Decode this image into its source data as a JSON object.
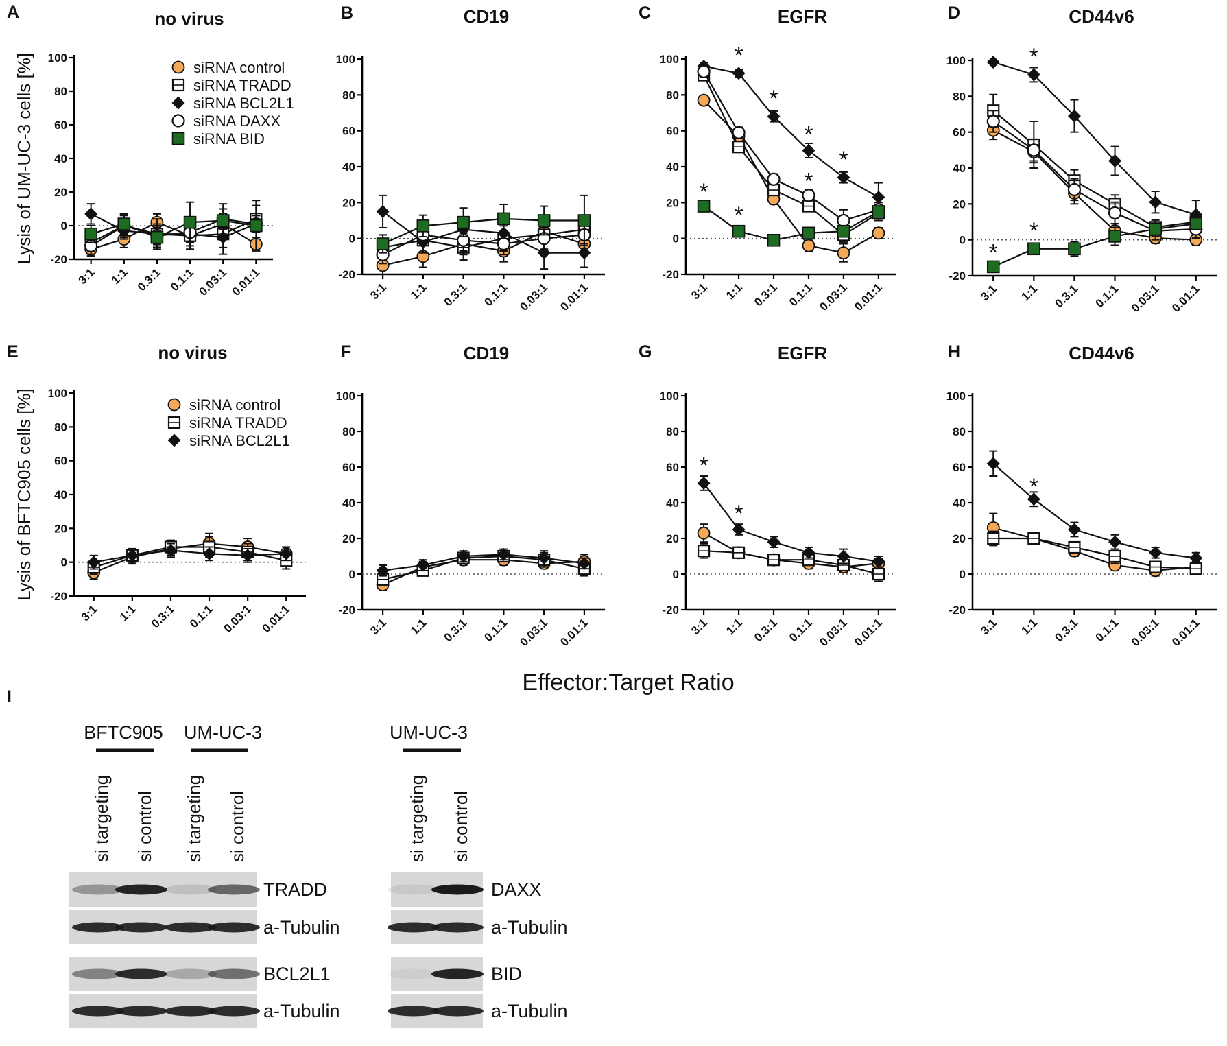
{
  "figure": {
    "common_xlabel": "Effector:Target Ratio"
  },
  "chart_data": [
    {
      "panel": "A",
      "type": "line",
      "title": "no virus",
      "ylabel": "Lysis of UM-UC-3 cells [%]",
      "categories": [
        "3:1",
        "1:1",
        "0.3:1",
        "0.1:1",
        "0.03:1",
        "0.01:1"
      ],
      "ylim": [
        -20,
        100
      ],
      "yticks": [
        -20,
        0,
        20,
        40,
        60,
        80,
        100
      ],
      "legend": [
        "siRNA control",
        "siRNA TRADD",
        "siRNA BCL2L1",
        "siRNA DAXX",
        "siRNA BID"
      ],
      "series": [
        {
          "name": "siRNA control",
          "marker": "circle-orange",
          "values": [
            -14,
            -8,
            2,
            -6,
            1,
            -11
          ],
          "err": [
            4,
            5,
            5,
            6,
            6,
            4
          ]
        },
        {
          "name": "siRNA TRADD",
          "marker": "square-open",
          "values": [
            -10,
            0,
            -5,
            -6,
            -5,
            4
          ],
          "err": [
            5,
            7,
            9,
            8,
            12,
            8
          ]
        },
        {
          "name": "siRNA BCL2L1",
          "marker": "diamond-black",
          "values": [
            7,
            -3,
            -5,
            -5,
            -7,
            1
          ],
          "err": [
            6,
            5,
            6,
            5,
            6,
            5
          ]
        },
        {
          "name": "siRNA DAXX",
          "marker": "circle-open",
          "values": [
            -12,
            0,
            -6,
            -4,
            4,
            1
          ],
          "err": [
            5,
            6,
            6,
            6,
            6,
            5
          ]
        },
        {
          "name": "siRNA BID",
          "marker": "square-green",
          "values": [
            -5,
            1,
            -7,
            2,
            3,
            0
          ],
          "err": [
            5,
            6,
            6,
            12,
            10,
            15
          ]
        }
      ],
      "stars": []
    },
    {
      "panel": "B",
      "type": "line",
      "title": "CD19",
      "categories": [
        "3:1",
        "1:1",
        "0.3:1",
        "0.1:1",
        "0.03:1",
        "0.01:1"
      ],
      "ylim": [
        -20,
        100
      ],
      "yticks": [
        -20,
        0,
        20,
        40,
        60,
        80,
        100
      ],
      "series": [
        {
          "name": "siRNA control",
          "marker": "circle-orange",
          "values": [
            -15,
            -10,
            -3,
            -7,
            4,
            -3
          ],
          "err": [
            5,
            6,
            6,
            6,
            6,
            5
          ]
        },
        {
          "name": "siRNA TRADD",
          "marker": "square-open",
          "values": [
            -5,
            -1,
            -5,
            0,
            2,
            5
          ],
          "err": [
            7,
            7,
            7,
            7,
            8,
            8
          ]
        },
        {
          "name": "siRNA BCL2L1",
          "marker": "diamond-black",
          "values": [
            15,
            -2,
            5,
            3,
            -8,
            -8
          ],
          "err": [
            9,
            6,
            6,
            6,
            9,
            8
          ]
        },
        {
          "name": "siRNA DAXX",
          "marker": "circle-open",
          "values": [
            -9,
            2,
            -1,
            -3,
            0,
            2
          ],
          "err": [
            5,
            5,
            6,
            6,
            6,
            5
          ]
        },
        {
          "name": "siRNA BID",
          "marker": "square-green",
          "values": [
            -3,
            7,
            9,
            11,
            10,
            10
          ],
          "err": [
            5,
            6,
            8,
            8,
            8,
            14
          ]
        }
      ],
      "stars": []
    },
    {
      "panel": "C",
      "type": "line",
      "title": "EGFR",
      "categories": [
        "3:1",
        "1:1",
        "0.3:1",
        "0.1:1",
        "0.03:1",
        "0.01:1"
      ],
      "ylim": [
        -20,
        100
      ],
      "yticks": [
        -20,
        0,
        20,
        40,
        60,
        80,
        100
      ],
      "series": [
        {
          "name": "siRNA control",
          "marker": "circle-orange",
          "values": [
            77,
            57,
            22,
            -4,
            -8,
            3
          ],
          "err": [
            2,
            3,
            3,
            3,
            5,
            3
          ]
        },
        {
          "name": "siRNA TRADD",
          "marker": "square-open",
          "values": [
            91,
            51,
            27,
            18,
            2,
            14
          ],
          "err": [
            3,
            3,
            3,
            3,
            4,
            4
          ]
        },
        {
          "name": "siRNA BCL2L1",
          "marker": "diamond-black",
          "values": [
            96,
            92,
            68,
            49,
            34,
            23
          ],
          "err": [
            2,
            2,
            3,
            4,
            3,
            8
          ]
        },
        {
          "name": "siRNA DAXX",
          "marker": "circle-open",
          "values": [
            93,
            59,
            33,
            24,
            10,
            16
          ],
          "err": [
            3,
            3,
            3,
            3,
            6,
            4
          ]
        },
        {
          "name": "siRNA BID",
          "marker": "square-green",
          "values": [
            18,
            4,
            -1,
            3,
            4,
            15
          ],
          "err": [
            2,
            2,
            2,
            2,
            2,
            3
          ]
        }
      ],
      "stars": [
        {
          "x": "1:1",
          "y": 103
        },
        {
          "x": "0.3:1",
          "y": 79
        },
        {
          "x": "0.1:1",
          "y": 59
        },
        {
          "x": "0.1:1",
          "y": 33
        },
        {
          "x": "0.03:1",
          "y": 45
        },
        {
          "x": "3:1",
          "y": 27
        },
        {
          "x": "1:1",
          "y": 14
        }
      ]
    },
    {
      "panel": "D",
      "type": "line",
      "title": "CD44v6",
      "categories": [
        "3:1",
        "1:1",
        "0.3:1",
        "0.1:1",
        "0.03:1",
        "0.01:1"
      ],
      "ylim": [
        -20,
        100
      ],
      "yticks": [
        -20,
        0,
        20,
        40,
        60,
        80,
        100
      ],
      "series": [
        {
          "name": "siRNA control",
          "marker": "circle-orange",
          "values": [
            61,
            49,
            26,
            5,
            1,
            0
          ],
          "err": [
            5,
            6,
            6,
            4,
            3,
            3
          ]
        },
        {
          "name": "siRNA TRADD",
          "marker": "square-open",
          "values": [
            72,
            53,
            33,
            20,
            7,
            10
          ],
          "err": [
            9,
            13,
            6,
            5,
            4,
            4
          ]
        },
        {
          "name": "siRNA BCL2L1",
          "marker": "diamond-black",
          "values": [
            99,
            92,
            69,
            44,
            21,
            14
          ],
          "err": [
            1,
            4,
            9,
            8,
            6,
            8
          ]
        },
        {
          "name": "siRNA DAXX",
          "marker": "circle-open",
          "values": [
            66,
            50,
            28,
            15,
            5,
            6
          ],
          "err": [
            6,
            6,
            6,
            6,
            5,
            5
          ]
        },
        {
          "name": "siRNA BID",
          "marker": "square-green",
          "values": [
            -15,
            -5,
            -5,
            2,
            6,
            9
          ],
          "err": [
            2,
            2,
            4,
            5,
            4,
            3
          ]
        }
      ],
      "stars": [
        {
          "x": "1:1",
          "y": 103
        },
        {
          "x": "3:1",
          "y": -6
        },
        {
          "x": "1:1",
          "y": 6
        }
      ]
    },
    {
      "panel": "E",
      "type": "line",
      "title": "no virus",
      "ylabel": "Lysis of BFTC905 cells [%]",
      "categories": [
        "3:1",
        "1:1",
        "0.3:1",
        "0.1:1",
        "0.03:1",
        "0.01:1"
      ],
      "ylim": [
        -20,
        100
      ],
      "yticks": [
        -20,
        0,
        20,
        40,
        60,
        80,
        100
      ],
      "legend": [
        "siRNA control",
        "siRNA TRADD",
        "siRNA BCL2L1"
      ],
      "series": [
        {
          "name": "siRNA control",
          "marker": "circle-orange",
          "values": [
            -6,
            3,
            8,
            11,
            9,
            5
          ],
          "err": [
            4,
            4,
            4,
            6,
            5,
            4
          ]
        },
        {
          "name": "siRNA TRADD",
          "marker": "square-open",
          "values": [
            -3,
            4,
            9,
            9,
            6,
            1
          ],
          "err": [
            4,
            4,
            4,
            6,
            5,
            5
          ]
        },
        {
          "name": "siRNA BCL2L1",
          "marker": "diamond-black",
          "values": [
            0,
            4,
            7,
            5,
            4,
            5
          ],
          "err": [
            4,
            4,
            4,
            4,
            4,
            4
          ]
        }
      ],
      "stars": []
    },
    {
      "panel": "F",
      "type": "line",
      "title": "CD19",
      "categories": [
        "3:1",
        "1:1",
        "0.3:1",
        "0.1:1",
        "0.03:1",
        "0.01:1"
      ],
      "ylim": [
        -20,
        100
      ],
      "yticks": [
        -20,
        0,
        20,
        40,
        60,
        80,
        100
      ],
      "series": [
        {
          "name": "siRNA control",
          "marker": "circle-orange",
          "values": [
            -6,
            4,
            8,
            8,
            6,
            7
          ],
          "err": [
            3,
            3,
            3,
            3,
            3,
            4
          ]
        },
        {
          "name": "siRNA TRADD",
          "marker": "square-open",
          "values": [
            -3,
            2,
            9,
            10,
            8,
            3
          ],
          "err": [
            3,
            3,
            3,
            3,
            4,
            4
          ]
        },
        {
          "name": "siRNA BCL2L1",
          "marker": "diamond-black",
          "values": [
            2,
            5,
            10,
            11,
            9,
            6
          ],
          "err": [
            3,
            3,
            3,
            3,
            4,
            3
          ]
        }
      ],
      "stars": []
    },
    {
      "panel": "G",
      "type": "line",
      "title": "EGFR",
      "categories": [
        "3:1",
        "1:1",
        "0.3:1",
        "0.1:1",
        "0.03:1",
        "0.01:1"
      ],
      "ylim": [
        -20,
        100
      ],
      "yticks": [
        -20,
        0,
        20,
        40,
        60,
        80,
        100
      ],
      "series": [
        {
          "name": "siRNA control",
          "marker": "circle-orange",
          "values": [
            23,
            12,
            8,
            6,
            4,
            6
          ],
          "err": [
            5,
            3,
            3,
            3,
            3,
            2
          ]
        },
        {
          "name": "siRNA TRADD",
          "marker": "square-open",
          "values": [
            13,
            12,
            8,
            8,
            5,
            0
          ],
          "err": [
            4,
            3,
            3,
            3,
            3,
            4
          ]
        },
        {
          "name": "siRNA BCL2L1",
          "marker": "diamond-black",
          "values": [
            51,
            25,
            18,
            12,
            10,
            7
          ],
          "err": [
            4,
            3,
            3,
            3,
            4,
            3
          ]
        }
      ],
      "stars": [
        {
          "x": "3:1",
          "y": 62
        },
        {
          "x": "1:1",
          "y": 35
        }
      ]
    },
    {
      "panel": "H",
      "type": "line",
      "title": "CD44v6",
      "categories": [
        "3:1",
        "1:1",
        "0.3:1",
        "0.1:1",
        "0.03:1",
        "0.01:1"
      ],
      "ylim": [
        -20,
        100
      ],
      "yticks": [
        -20,
        0,
        20,
        40,
        60,
        80,
        100
      ],
      "series": [
        {
          "name": "siRNA control",
          "marker": "circle-orange",
          "values": [
            26,
            20,
            13,
            5,
            2,
            4
          ],
          "err": [
            8,
            3,
            3,
            3,
            3,
            3
          ]
        },
        {
          "name": "siRNA TRADD",
          "marker": "square-open",
          "values": [
            20,
            20,
            15,
            10,
            4,
            3
          ],
          "err": [
            4,
            3,
            3,
            4,
            3,
            3
          ]
        },
        {
          "name": "siRNA BCL2L1",
          "marker": "diamond-black",
          "values": [
            62,
            42,
            25,
            18,
            12,
            9
          ],
          "err": [
            7,
            4,
            4,
            4,
            3,
            3
          ]
        }
      ],
      "stars": [
        {
          "x": "1:1",
          "y": 50
        }
      ]
    }
  ],
  "blots": {
    "panel": "I",
    "left": {
      "groups": [
        "BFTC905",
        "UM-UC-3"
      ],
      "lanes": [
        "si targeting",
        "si control",
        "si targeting",
        "si control"
      ],
      "rows": [
        {
          "label": "TRADD",
          "bands": [
            0.35,
            0.95,
            0.12,
            0.6
          ]
        },
        {
          "label": "a-Tubulin",
          "bands": [
            0.9,
            0.9,
            0.9,
            0.9
          ]
        },
        {
          "label": "BCL2L1",
          "bands": [
            0.45,
            0.9,
            0.25,
            0.55
          ]
        },
        {
          "label": "a-Tubulin",
          "bands": [
            0.9,
            0.9,
            0.9,
            0.9
          ]
        }
      ]
    },
    "right": {
      "groups": [
        "UM-UC-3"
      ],
      "lanes": [
        "si targeting",
        "si control"
      ],
      "rows": [
        {
          "label": "DAXX",
          "bands": [
            0.08,
            1.0
          ]
        },
        {
          "label": "a-Tubulin",
          "bands": [
            0.9,
            0.9
          ]
        },
        {
          "label": "BID",
          "bands": [
            0.03,
            0.95
          ]
        },
        {
          "label": "a-Tubulin",
          "bands": [
            0.9,
            0.9
          ]
        }
      ]
    }
  },
  "colors": {
    "orange": "#F5A857",
    "green": "#1E6B22",
    "black": "#111111",
    "blot_bg": "#d7d7d7"
  }
}
